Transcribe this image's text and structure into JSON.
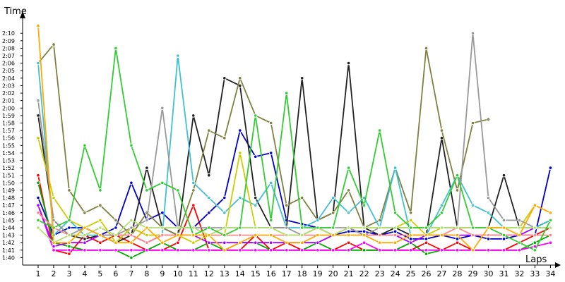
{
  "chart_data": {
    "type": "line",
    "xlabel": "Laps",
    "ylabel": "Time",
    "x": [
      1,
      2,
      3,
      4,
      5,
      6,
      7,
      8,
      9,
      10,
      11,
      12,
      13,
      14,
      15,
      16,
      17,
      18,
      19,
      20,
      21,
      22,
      23,
      24,
      25,
      26,
      27,
      28,
      29,
      30,
      31,
      32,
      33,
      34
    ],
    "xlim": [
      0,
      34.3
    ],
    "ylim": [
      99,
      132
    ],
    "y_ticks": [
      {
        "value": 100,
        "label": "1:40"
      },
      {
        "value": 101,
        "label": "1:41"
      },
      {
        "value": 102,
        "label": "1:42"
      },
      {
        "value": 103,
        "label": "1:43"
      },
      {
        "value": 104,
        "label": "1:44"
      },
      {
        "value": 105,
        "label": "1:45"
      },
      {
        "value": 106,
        "label": "1:46"
      },
      {
        "value": 107,
        "label": "1:47"
      },
      {
        "value": 108,
        "label": "1:48"
      },
      {
        "value": 109,
        "label": "1:49"
      },
      {
        "value": 110,
        "label": "1:50"
      },
      {
        "value": 111,
        "label": "1:51"
      },
      {
        "value": 112,
        "label": "1:52"
      },
      {
        "value": 113,
        "label": "1:53"
      },
      {
        "value": 114,
        "label": "1:54"
      },
      {
        "value": 115,
        "label": "1:55"
      },
      {
        "value": 116,
        "label": "1:56"
      },
      {
        "value": 117,
        "label": "1:57"
      },
      {
        "value": 118,
        "label": "1:58"
      },
      {
        "value": 119,
        "label": "1:59"
      },
      {
        "value": 120,
        "label": "2:00"
      },
      {
        "value": 121,
        "label": "2:01"
      },
      {
        "value": 122,
        "label": "2:02"
      },
      {
        "value": 123,
        "label": "2:03"
      },
      {
        "value": 124,
        "label": "2:04"
      },
      {
        "value": 125,
        "label": "2:05"
      },
      {
        "value": 126,
        "label": "2:06"
      },
      {
        "value": 127,
        "label": "2:07"
      },
      {
        "value": 128,
        "label": "2:08"
      },
      {
        "value": 129,
        "label": "2:09"
      },
      {
        "value": 130,
        "label": "2:10"
      }
    ],
    "grid": false,
    "legend": "none",
    "series": [
      {
        "color": "#ff0000",
        "values": [
          111,
          101,
          100.5,
          103,
          102,
          103,
          102,
          101,
          101,
          102,
          107,
          101,
          101,
          101,
          103,
          101,
          102,
          101,
          101,
          101,
          102,
          101,
          101,
          101,
          101,
          102,
          101,
          102,
          101,
          101,
          101,
          102,
          103,
          104
        ]
      },
      {
        "color": "#0000cc",
        "values": [
          108,
          103,
          104,
          104,
          103,
          104,
          110,
          105,
          106,
          104,
          104,
          106,
          108,
          117,
          113.5,
          114,
          105,
          104.5,
          104,
          103,
          103.5,
          103.5,
          103,
          103.5,
          102.5,
          102.5,
          103,
          102.5,
          103,
          102.5,
          102.5,
          103,
          103,
          112
        ]
      },
      {
        "color": "#00aa00",
        "values": [
          110,
          102,
          101.5,
          101,
          101,
          101,
          100,
          101,
          102,
          101,
          101,
          102,
          101,
          102,
          102,
          101,
          101,
          101,
          102,
          101,
          101,
          101,
          101,
          101,
          102,
          100.5,
          101,
          101,
          101,
          101,
          101,
          101,
          102,
          103
        ]
      },
      {
        "color": "#222222",
        "values": [
          119,
          105,
          103,
          102.5,
          103,
          102,
          103,
          112,
          104,
          103,
          119,
          111,
          124,
          123,
          108,
          104,
          104,
          124,
          105,
          106,
          126,
          104,
          103,
          104,
          103,
          103,
          116,
          104,
          104,
          104,
          111,
          104,
          104,
          105
        ]
      },
      {
        "color": "#808040",
        "values": [
          126,
          128.5,
          109,
          106,
          107,
          105,
          103,
          106,
          104,
          103,
          109,
          117,
          116,
          124,
          119,
          118,
          107,
          108,
          105,
          106,
          109,
          104,
          105,
          112,
          106,
          128,
          117,
          109,
          118,
          118.5,
          null,
          null,
          null,
          null
        ]
      },
      {
        "color": "#ff00ff",
        "values": [
          107,
          101,
          101,
          101,
          101,
          101,
          101,
          101,
          101,
          101,
          101,
          101,
          101,
          101,
          101,
          101,
          101,
          101,
          101,
          101,
          101,
          102,
          101,
          101,
          101,
          101,
          101,
          101,
          101,
          101,
          101,
          101,
          101.5,
          102
        ]
      },
      {
        "color": "#aa00ff",
        "values": [
          107,
          101.5,
          102,
          102,
          103,
          103,
          103,
          102,
          103,
          103,
          103,
          102,
          102,
          102,
          102,
          102,
          102,
          102,
          102,
          103,
          104,
          103,
          103,
          103,
          102,
          103,
          103,
          103,
          103,
          103,
          103,
          103,
          104,
          104
        ]
      },
      {
        "color": "#40c0d0",
        "values": [
          126,
          103,
          105,
          103,
          103,
          102,
          104,
          103,
          103,
          127,
          110,
          108,
          106,
          108,
          107,
          110,
          104,
          104,
          105,
          108,
          106,
          108,
          104,
          112,
          103,
          103,
          107,
          111,
          107,
          106,
          104,
          104,
          104,
          105
        ]
      },
      {
        "color": "#cccc00",
        "values": [
          116,
          108,
          105,
          104,
          105,
          102,
          104,
          103,
          103,
          103,
          102,
          103,
          103,
          114,
          104,
          104,
          103,
          103,
          104,
          103,
          104,
          104,
          104,
          104,
          105,
          103,
          104,
          104,
          104,
          104,
          104,
          104,
          107,
          106
        ]
      },
      {
        "color": "#ff8888",
        "values": [
          106,
          104,
          103,
          103,
          104,
          103,
          103,
          102,
          103,
          103,
          103,
          103,
          103,
          103,
          103,
          103,
          103,
          103,
          103,
          103,
          103,
          103,
          103,
          103,
          103,
          103,
          103,
          104,
          103,
          103,
          103,
          103,
          103,
          103
        ]
      },
      {
        "color": "#999999",
        "values": [
          121,
          105,
          103,
          104,
          103,
          103,
          104,
          105,
          120,
          104,
          104,
          104,
          104,
          104,
          104,
          104,
          104,
          103,
          104,
          104,
          104,
          103,
          104,
          104,
          104,
          104,
          104,
          104,
          130,
          108,
          105,
          105,
          104,
          104
        ]
      },
      {
        "color": "#b0e070",
        "values": [
          104,
          102,
          103,
          103,
          104,
          103,
          105,
          104,
          104,
          104,
          104,
          103,
          104,
          104,
          104,
          104,
          103,
          103,
          104,
          103,
          104,
          104,
          104,
          104,
          104,
          104,
          104,
          104,
          104,
          104,
          104,
          104,
          104,
          104
        ]
      },
      {
        "color": "#33cc33",
        "values": [
          105,
          104,
          105,
          115,
          109,
          128,
          115,
          109,
          110,
          109,
          103,
          104,
          103,
          104,
          119,
          105,
          122,
          104,
          104,
          104,
          112,
          107,
          117,
          106,
          104,
          104,
          106,
          111,
          104,
          104,
          103,
          102,
          101,
          105
        ]
      },
      {
        "color": "#ffaa00",
        "values": [
          131,
          102,
          102,
          104,
          103,
          102,
          102,
          104,
          102,
          103,
          103,
          103,
          101,
          102,
          103,
          103,
          102,
          102,
          103,
          103,
          103,
          103,
          102,
          102,
          103,
          103,
          103,
          103,
          101,
          104,
          104,
          103,
          107,
          106
        ]
      }
    ]
  }
}
